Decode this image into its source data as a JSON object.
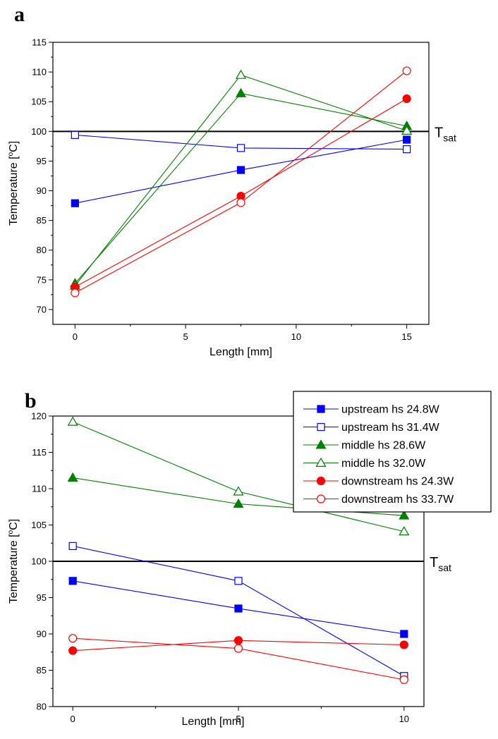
{
  "figure": {
    "panels": [
      {
        "letter": "a",
        "chart_data": {
          "type": "line",
          "title": "",
          "xlabel": "Length [mm]",
          "ylabel_parts": [
            "Temperature [",
            "o",
            "C]"
          ],
          "xlim": [
            -1,
            16
          ],
          "ylim": [
            67.5,
            115
          ],
          "xticks": [
            0,
            5,
            10,
            15
          ],
          "yticks": [
            70,
            75,
            80,
            85,
            90,
            95,
            100,
            105,
            110,
            115
          ],
          "grid": false,
          "reference_line": {
            "y": 100,
            "label": "T",
            "sub": "sat"
          },
          "series": [
            {
              "label": "upstream hs 24.8W",
              "color": "#0000ff",
              "marker": "square",
              "fill": true,
              "x": [
                0,
                7.5,
                15
              ],
              "y": [
                87.9,
                93.5,
                98.6
              ]
            },
            {
              "label": "upstream hs 31.4W",
              "color": "#0000ff",
              "marker": "square",
              "fill": false,
              "x": [
                0,
                7.5,
                15
              ],
              "y": [
                99.4,
                97.2,
                97.0
              ]
            },
            {
              "label": "middle hs 28.6W",
              "color": "#008000",
              "marker": "triangle",
              "fill": true,
              "x": [
                0,
                7.5,
                15
              ],
              "y": [
                74.4,
                106.4,
                100.9
              ]
            },
            {
              "label": "middle hs 32.0W",
              "color": "#008000",
              "marker": "triangle",
              "fill": false,
              "x": [
                0,
                7.5,
                15
              ],
              "y": [
                74.0,
                109.5,
                100.1
              ]
            },
            {
              "label": "downstream hs 24.3W",
              "color": "#ff0000",
              "marker": "circle",
              "fill": true,
              "x": [
                0,
                7.5,
                15
              ],
              "y": [
                73.8,
                89.1,
                105.5
              ]
            },
            {
              "label": "downstream hs 33.7W",
              "color": "#ff0000",
              "marker": "circle",
              "fill": false,
              "x": [
                0,
                7.5,
                15
              ],
              "y": [
                72.8,
                88.0,
                110.2
              ]
            }
          ]
        }
      },
      {
        "letter": "b",
        "chart_data": {
          "type": "line",
          "title": "",
          "xlabel": "Length [mm]",
          "ylabel_parts": [
            "Temperature [",
            "o",
            "C]"
          ],
          "xlim": [
            -0.6,
            10.6
          ],
          "ylim": [
            80,
            120
          ],
          "xticks": [
            0,
            5,
            10
          ],
          "yticks": [
            80,
            85,
            90,
            95,
            100,
            105,
            110,
            115,
            120
          ],
          "grid": false,
          "legend_position": "top-right",
          "reference_line": {
            "y": 100,
            "label": "T",
            "sub": "sat"
          },
          "series": [
            {
              "label": "upstream hs 24.8W",
              "color": "#0000ff",
              "marker": "square",
              "fill": true,
              "x": [
                0,
                5,
                10
              ],
              "y": [
                97.3,
                93.5,
                90.0
              ]
            },
            {
              "label": "upstream hs 31.4W",
              "color": "#0000ff",
              "marker": "square",
              "fill": false,
              "x": [
                0,
                5,
                10
              ],
              "y": [
                102.1,
                97.3,
                84.2
              ]
            },
            {
              "label": "middle hs 28.6W",
              "color": "#008000",
              "marker": "triangle",
              "fill": true,
              "x": [
                0,
                5,
                10
              ],
              "y": [
                111.5,
                107.9,
                106.3
              ]
            },
            {
              "label": "middle hs 32.0W",
              "color": "#008000",
              "marker": "triangle",
              "fill": false,
              "x": [
                0,
                5,
                10
              ],
              "y": [
                119.2,
                109.6,
                104.1
              ]
            },
            {
              "label": "downstream hs 24.3W",
              "color": "#ff0000",
              "marker": "circle",
              "fill": true,
              "x": [
                0,
                5,
                10
              ],
              "y": [
                87.7,
                89.1,
                88.5
              ]
            },
            {
              "label": "downstream hs 33.7W",
              "color": "#ff0000",
              "marker": "circle",
              "fill": false,
              "x": [
                0,
                5,
                10
              ],
              "y": [
                89.4,
                88.0,
                83.7
              ]
            }
          ]
        }
      }
    ]
  }
}
